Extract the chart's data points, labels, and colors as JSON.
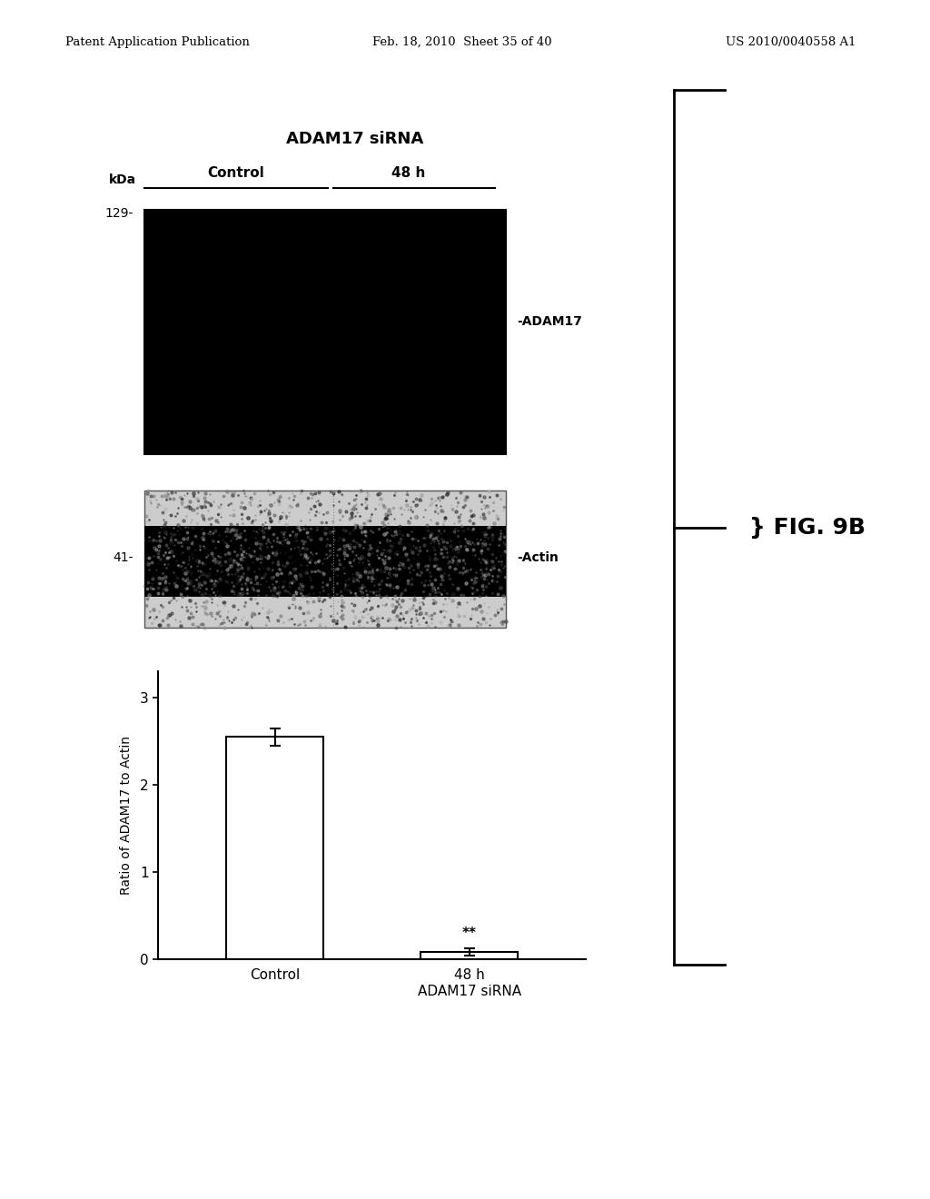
{
  "header_left": "Patent Application Publication",
  "header_mid": "Feb. 18, 2010  Sheet 35 of 40",
  "header_right": "US 2010/0040558 A1",
  "blot_title": "ADAM17 siRNA",
  "blot_col1_label": "Control",
  "blot_col2_label": "48 h",
  "blot_kda_label": "kDa",
  "blot_marker1": "129-",
  "blot_marker2": "41-",
  "blot_band1_label": "-ADAM17",
  "blot_band2_label": "-Actin",
  "bar_categories": [
    "Control",
    "48 h\nADAM17 siRNA"
  ],
  "bar_values": [
    2.55,
    0.08
  ],
  "bar_errors": [
    0.1,
    0.04
  ],
  "bar_ylabel": "Ratio of ADAM17 to Actin",
  "bar_yticks": [
    0,
    1,
    2,
    3
  ],
  "bar_ylim": [
    0,
    3.3
  ],
  "bg_color": "#ffffff",
  "bar_color": "#ffffff",
  "bar_edge_color": "#000000",
  "text_color": "#000000",
  "significance_label": "**",
  "fig_label": "FIG. 9B"
}
